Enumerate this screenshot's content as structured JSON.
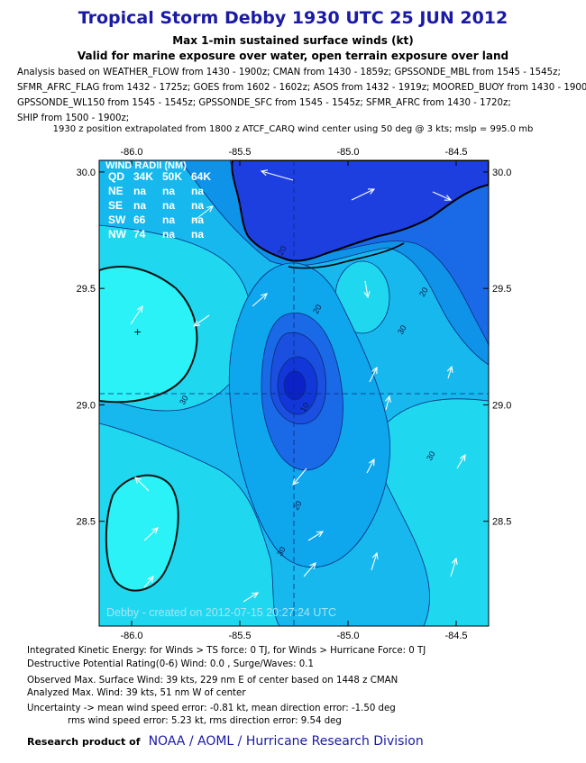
{
  "header": {
    "title": "Tropical Storm Debby 1930 UTC 25 JUN 2012",
    "subtitle1": "Max 1-min sustained surface winds (kt)",
    "subtitle2": "Valid for marine exposure over water, open terrain exposure over land"
  },
  "analysis_lines": [
    "Analysis based on WEATHER_FLOW from 1430 - 1900z; CMAN from 1430 - 1859z; GPSSONDE_MBL from 1545 - 1545z;",
    "SFMR_AFRC_FLAG from 1432 - 1725z; GOES from 1602 - 1602z; ASOS from 1432 - 1919z; MOORED_BUOY from 1430 - 1900z;",
    "GPSSONDE_WL150 from 1545 - 1545z; GPSSONDE_SFC from 1545 - 1545z; SFMR_AFRC from 1430 - 1720z;",
    "SHIP from 1500 - 1900z;"
  ],
  "position_line": "1930 z position extrapolated from 1800 z ATCF_CARQ wind center using 50 deg @ 3 kts; mslp = 995.0 mb",
  "map": {
    "lon_labels": [
      "-86.0",
      "-85.5",
      "-85.0",
      "-84.5"
    ],
    "lon_values": [
      -86.0,
      -85.5,
      -85.0,
      -84.5
    ],
    "lat_labels": [
      "30.0",
      "29.5",
      "29.0",
      "28.5"
    ],
    "lat_values": [
      30.0,
      29.5,
      29.0,
      28.5
    ],
    "lon_range": [
      -86.15,
      -84.35
    ],
    "lat_range": [
      28.05,
      30.05
    ],
    "center": {
      "lon": -85.1,
      "lat": 29.05
    },
    "contour_labels": [
      "20",
      "20",
      "20",
      "10",
      "30",
      "30",
      "30",
      "20",
      "30"
    ],
    "wind_radii": {
      "title": "WIND RADII (NM)",
      "header": [
        "QD",
        "34K",
        "50K",
        "64K"
      ],
      "rows": [
        [
          "NE",
          "na",
          "na",
          "na"
        ],
        [
          "SE",
          "na",
          "na",
          "na"
        ],
        [
          "SW",
          "66",
          "na",
          "na"
        ],
        [
          "NW",
          "74",
          "na",
          "na"
        ]
      ]
    },
    "credit": "Debby - created on 2012-07-15 20:27:24 UTC",
    "colors": {
      "water_light": "#1fd8f0",
      "water_mid": "#0ea6ec",
      "deep": "#1565e8",
      "core": "#0a2fcf",
      "land": "#1d3fe0"
    }
  },
  "info": {
    "line1": "Integrated Kinetic Energy: for Winds > TS force: 0 TJ, for Winds > Hurricane Force: 0 TJ",
    "line2": "Destructive Potential Rating(0-6)  Wind: 0.0 , Surge/Waves: 0.1",
    "line3": "Observed Max. Surface Wind: 39 kts, 229 nm E of center based on 1448 z CMAN",
    "line4": "Analyzed Max. Wind: 39 kts, 51 nm  W of center",
    "line5": "Uncertainty -> mean wind speed error:  -0.81 kt, mean direction error:  -1.50 deg",
    "line6": "rms wind speed error: 5.23 kt, rms direction error: 9.54 deg"
  },
  "footer": {
    "label": "Research product of",
    "org": "NOAA  /  AOML  /  Hurricane Research Division"
  }
}
